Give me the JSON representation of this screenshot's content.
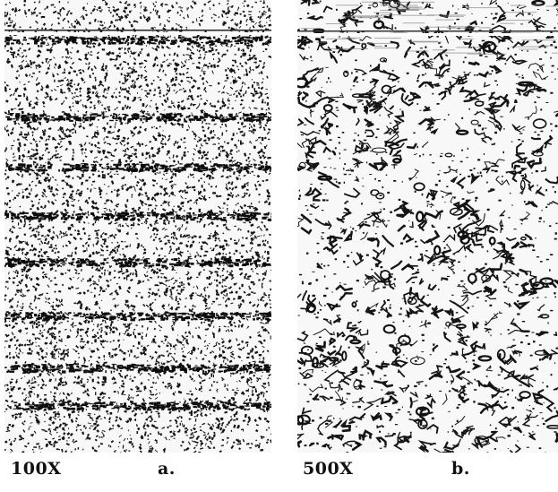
{
  "panels": [
    {
      "magnification": "100X",
      "letter": "a."
    },
    {
      "magnification": "500X",
      "letter": "b."
    }
  ]
}
